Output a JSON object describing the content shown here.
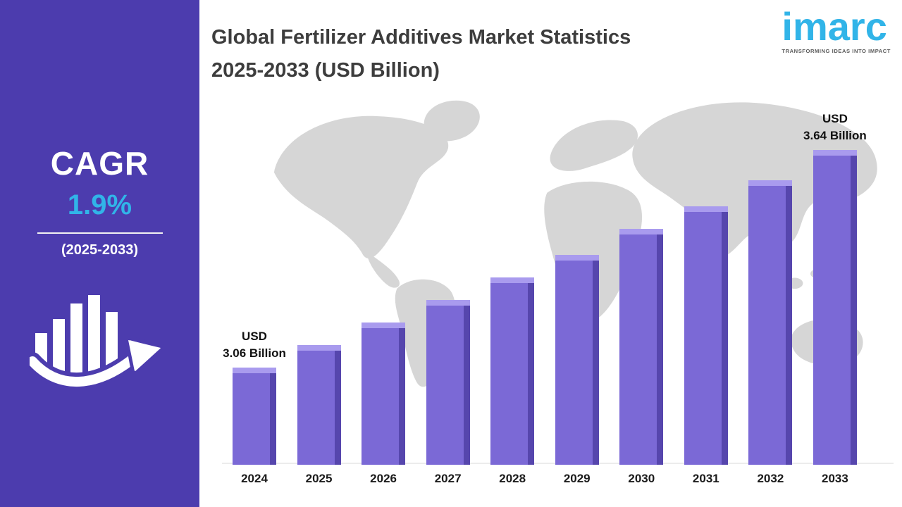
{
  "sidebar": {
    "cagr_label": "CAGR",
    "cagr_value": "1.9%",
    "period": "(2025-2033)"
  },
  "header": {
    "title_line1": "Global Fertilizer Additives Market Statistics",
    "title_line2": "2025-2033 (USD Billion)",
    "logo_text": "imarc",
    "logo_tagline": "TRANSFORMING IDEAS INTO IMPACT"
  },
  "chart_data": {
    "type": "bar",
    "title": "Global Fertilizer Additives Market Statistics 2025-2033 (USD Billion)",
    "categories": [
      "2024",
      "2025",
      "2026",
      "2027",
      "2028",
      "2029",
      "2030",
      "2031",
      "2032",
      "2033"
    ],
    "values": [
      3.06,
      3.12,
      3.18,
      3.24,
      3.3,
      3.36,
      3.43,
      3.49,
      3.56,
      3.64
    ],
    "unit": "USD Billion",
    "ylim": [
      2.8,
      3.75
    ],
    "grid": false,
    "legend": "none",
    "annotations": [
      {
        "index": 0,
        "lines": [
          "USD",
          "3.06 Billion"
        ]
      },
      {
        "index": 9,
        "lines": [
          "USD",
          "3.64 Billion"
        ]
      }
    ]
  },
  "colors": {
    "sidebar_bg": "#4c3cae",
    "accent_cyan": "#31b4e8",
    "bar_color": "#7b69d6",
    "bar_shadow": "#5646ad",
    "bar_highlight": "#a99bee",
    "map_fill": "#d6d6d6"
  }
}
